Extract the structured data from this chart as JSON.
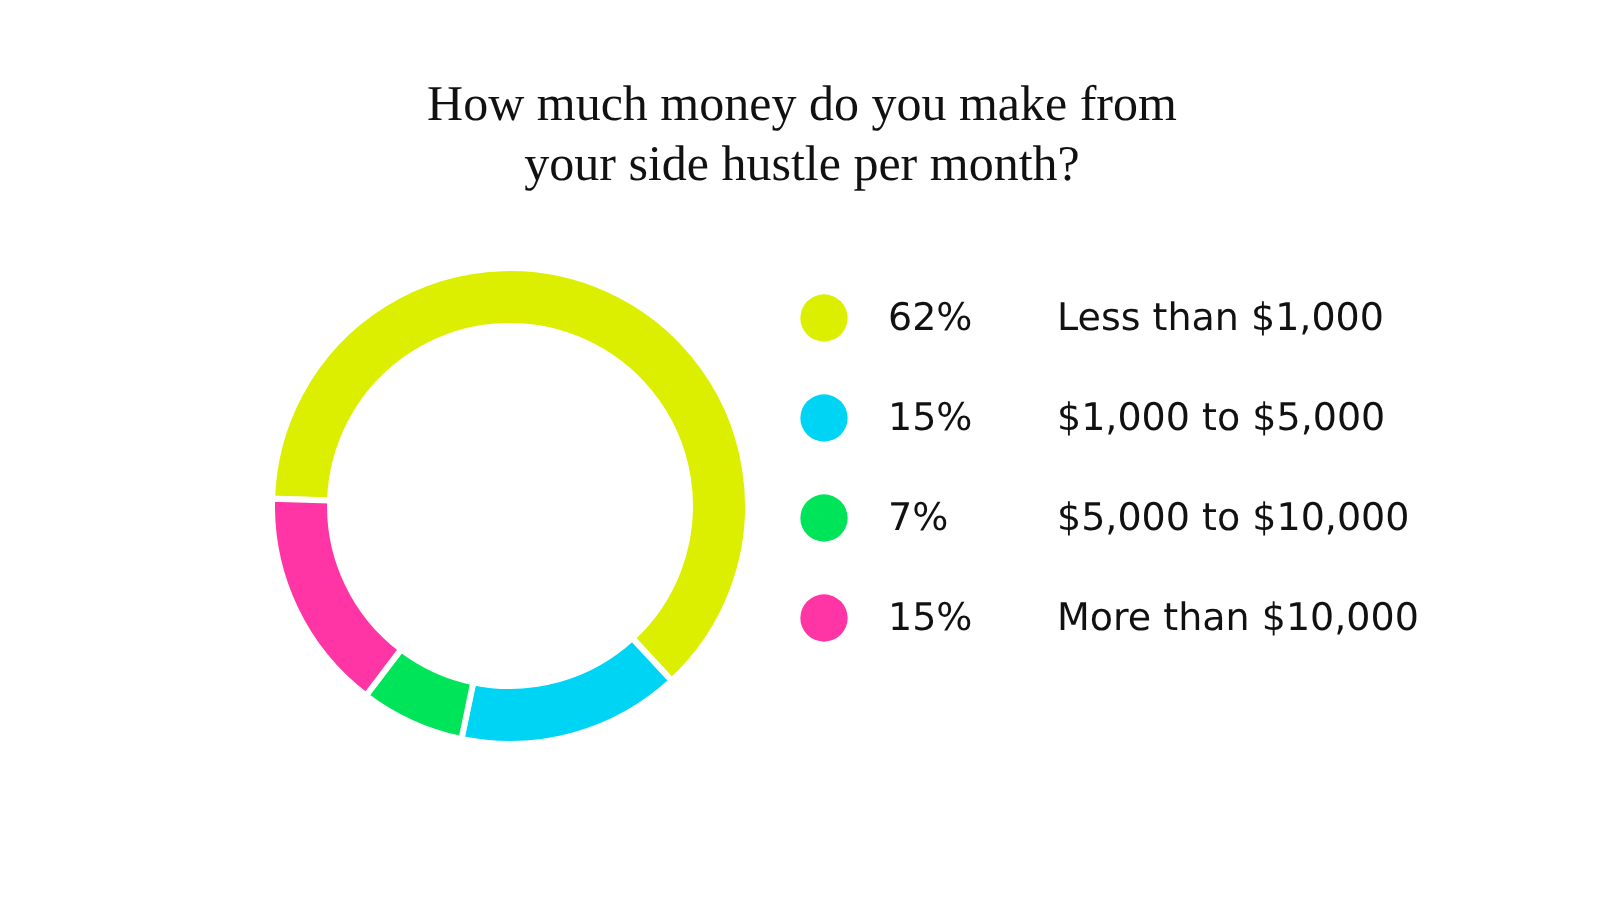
{
  "chart_data": {
    "type": "donut",
    "title": "How much money do you make from your side hustle per month?",
    "categories": [
      "Less than $1,000",
      "$1,000 to $5,000",
      "$5,000 to $10,000",
      "More than $10,000"
    ],
    "values": [
      62,
      15,
      7,
      15
    ],
    "value_labels": [
      "62%",
      "15%",
      "7%",
      "15%"
    ],
    "colors": [
      "#dcef00",
      "#00d4f5",
      "#00e45a",
      "#ff35a5"
    ],
    "legend": "right"
  }
}
